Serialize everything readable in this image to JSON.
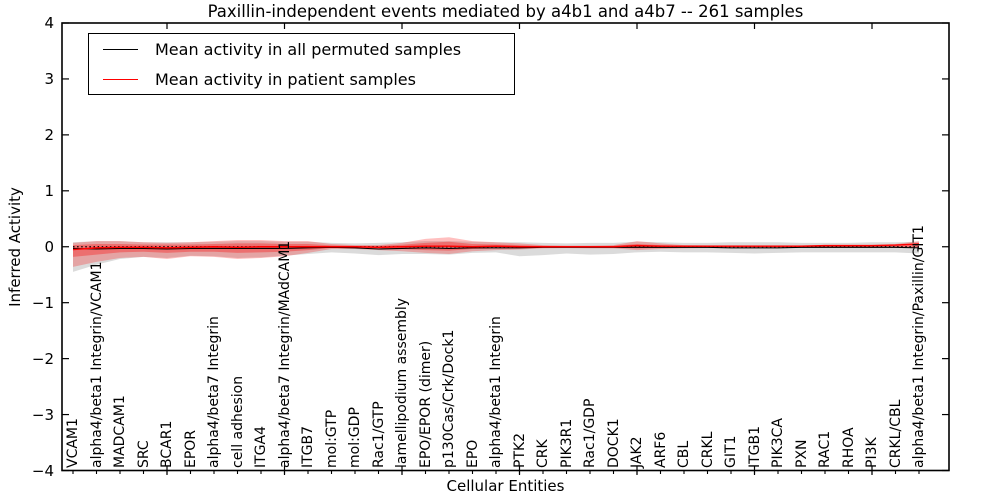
{
  "chart_data": {
    "type": "line",
    "title": "Paxillin-independent events mediated by a4b1 and a4b7 -- 261 samples",
    "xlabel": "Cellular Entities",
    "ylabel": "Inferred Activity",
    "ylim": [
      -4,
      4
    ],
    "yticks": [
      -4,
      -3,
      -2,
      -1,
      0,
      1,
      2,
      3,
      4
    ],
    "xtick_major_indices": [
      4,
      9,
      14,
      19,
      24,
      29,
      34
    ],
    "grid": false,
    "legend_position": "upper left",
    "zero_line": 0,
    "categories": [
      "VCAM1",
      "alpha4/beta1 Integrin/VCAM1",
      "MADCAM1",
      "SRC",
      "BCAR1",
      "EPOR",
      "alpha4/beta7 Integrin",
      "cell adhesion",
      "ITGA4",
      "alpha4/beta7 Integrin/MAdCAM1",
      "ITGB7",
      "mol:GTP",
      "mol:GDP",
      "Rac1/GTP",
      "lamellipodium assembly",
      "EPO/EPOR (dimer)",
      "p130Cas/Crk/Dock1",
      "EPO",
      "alpha4/beta1 Integrin",
      "PTK2",
      "CRK",
      "PIK3R1",
      "Rac1/GDP",
      "DOCK1",
      "JAK2",
      "ARF6",
      "CBL",
      "CRKL",
      "GIT1",
      "ITGB1",
      "PIK3CA",
      "PXN",
      "RAC1",
      "RHOA",
      "PI3K",
      "CRKL/CBL",
      "alpha4/beta1 Integrin/Paxillin/GIT1"
    ],
    "series": [
      {
        "name": "Mean activity in all permuted samples",
        "color": "#000000",
        "values": [
          -0.03,
          -0.04,
          -0.03,
          -0.03,
          -0.04,
          -0.03,
          -0.03,
          -0.03,
          -0.03,
          -0.03,
          -0.02,
          -0.01,
          -0.02,
          -0.04,
          -0.03,
          -0.02,
          -0.03,
          -0.02,
          -0.02,
          -0.02,
          -0.01,
          -0.01,
          -0.01,
          -0.01,
          -0.01,
          -0.01,
          -0.01,
          -0.01,
          -0.02,
          -0.02,
          -0.02,
          -0.01,
          -0.01,
          -0.01,
          -0.01,
          -0.01,
          -0.02
        ]
      },
      {
        "name": "Mean activity in patient samples",
        "color": "#ff0000",
        "values": [
          -0.05,
          -0.02,
          -0.01,
          -0.01,
          -0.02,
          -0.01,
          0.0,
          -0.01,
          0.0,
          0.0,
          0.0,
          0.0,
          0.0,
          -0.01,
          0.0,
          0.01,
          0.01,
          0.0,
          0.01,
          0.0,
          0.0,
          0.0,
          0.0,
          0.0,
          0.02,
          0.01,
          0.01,
          0.01,
          0.01,
          0.01,
          0.01,
          0.01,
          0.02,
          0.02,
          0.02,
          0.03,
          0.05
        ]
      }
    ],
    "bands": [
      {
        "name": "permuted-samples-range",
        "color": "rgba(125,125,125,0.28)",
        "upper": [
          0.08,
          0.1,
          0.1,
          0.08,
          0.08,
          0.08,
          0.09,
          0.1,
          0.1,
          0.09,
          0.09,
          0.07,
          0.06,
          0.07,
          0.08,
          0.1,
          0.1,
          0.09,
          0.08,
          0.08,
          0.07,
          0.06,
          0.07,
          0.07,
          0.09,
          0.08,
          0.07,
          0.07,
          0.08,
          0.08,
          0.08,
          0.07,
          0.07,
          0.07,
          0.08,
          0.08,
          0.09
        ],
        "lower": [
          -0.45,
          -0.32,
          -0.22,
          -0.18,
          -0.2,
          -0.16,
          -0.17,
          -0.2,
          -0.19,
          -0.16,
          -0.13,
          -0.1,
          -0.12,
          -0.15,
          -0.13,
          -0.13,
          -0.14,
          -0.11,
          -0.1,
          -0.17,
          -0.15,
          -0.12,
          -0.14,
          -0.13,
          -0.1,
          -0.09,
          -0.1,
          -0.1,
          -0.11,
          -0.12,
          -0.11,
          -0.1,
          -0.1,
          -0.1,
          -0.1,
          -0.1,
          -0.12
        ]
      },
      {
        "name": "patient-samples-range-outer",
        "color": "rgba(255,0,0,0.25)",
        "upper": [
          0.07,
          0.1,
          0.1,
          0.08,
          0.07,
          0.08,
          0.1,
          0.12,
          0.12,
          0.1,
          0.1,
          0.05,
          0.03,
          0.03,
          0.07,
          0.14,
          0.17,
          0.1,
          0.08,
          0.06,
          0.03,
          0.02,
          0.02,
          0.03,
          0.1,
          0.06,
          0.03,
          0.025,
          0.025,
          0.025,
          0.025,
          0.025,
          0.025,
          0.03,
          0.03,
          0.05,
          0.1
        ],
        "lower": [
          -0.36,
          -0.27,
          -0.2,
          -0.18,
          -0.22,
          -0.17,
          -0.18,
          -0.22,
          -0.2,
          -0.17,
          -0.11,
          -0.04,
          -0.04,
          -0.06,
          -0.08,
          -0.11,
          -0.13,
          -0.08,
          -0.06,
          -0.05,
          -0.03,
          -0.025,
          -0.03,
          -0.03,
          -0.06,
          -0.04,
          -0.03,
          -0.025,
          -0.025,
          -0.025,
          -0.025,
          -0.02,
          -0.02,
          -0.02,
          -0.02,
          -0.02,
          -0.02
        ]
      },
      {
        "name": "patient-samples-range-inner",
        "color": "rgba(255,0,0,0.32)",
        "upper": [
          0.03,
          0.05,
          0.05,
          0.04,
          0.04,
          0.04,
          0.05,
          0.06,
          0.06,
          0.05,
          0.05,
          0.025,
          0.015,
          0.015,
          0.035,
          0.07,
          0.09,
          0.05,
          0.04,
          0.03,
          0.015,
          0.01,
          0.01,
          0.015,
          0.05,
          0.03,
          0.015,
          0.012,
          0.012,
          0.012,
          0.012,
          0.012,
          0.012,
          0.015,
          0.015,
          0.025,
          0.05
        ],
        "lower": [
          -0.18,
          -0.14,
          -0.1,
          -0.09,
          -0.11,
          -0.09,
          -0.09,
          -0.11,
          -0.1,
          -0.09,
          -0.06,
          -0.02,
          -0.02,
          -0.03,
          -0.04,
          -0.06,
          -0.07,
          -0.04,
          -0.03,
          -0.025,
          -0.015,
          -0.012,
          -0.015,
          -0.015,
          -0.03,
          -0.02,
          -0.015,
          -0.012,
          -0.012,
          -0.012,
          -0.012,
          -0.01,
          -0.01,
          -0.01,
          -0.01,
          -0.01,
          -0.01
        ]
      }
    ]
  },
  "legend": {
    "items": [
      {
        "label": "Mean activity in all permuted samples",
        "color": "#000000"
      },
      {
        "label": "Mean activity in patient samples",
        "color": "#ff0000"
      }
    ]
  }
}
